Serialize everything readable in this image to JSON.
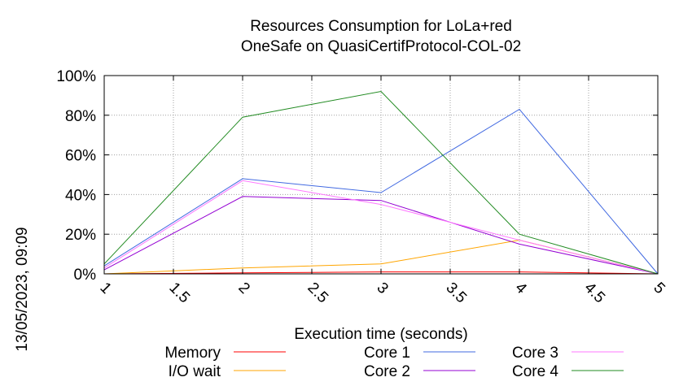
{
  "chart_data": {
    "type": "line",
    "title": [
      "Resources Consumption for LoLa+red",
      "OneSafe on QuasiCertifProtocol-COL-02"
    ],
    "xlabel": "Execution time (seconds)",
    "ylabel": "",
    "side_label": "13/05/2023, 09:09",
    "xlim": [
      1,
      5
    ],
    "ylim": [
      0,
      100
    ],
    "x_ticks": [
      "1",
      "1.5",
      "2",
      "2.5",
      "3",
      "3.5",
      "4",
      "4.5",
      "5"
    ],
    "x_tick_values": [
      1,
      1.5,
      2,
      2.5,
      3,
      3.5,
      4,
      4.5,
      5
    ],
    "y_ticks": [
      "0%",
      "20%",
      "40%",
      "60%",
      "80%",
      "100%"
    ],
    "y_tick_values": [
      0,
      20,
      40,
      60,
      80,
      100
    ],
    "grid": true,
    "legend_position": "bottom",
    "series": [
      {
        "name": "Memory",
        "color": "#ff0000",
        "x": [
          1,
          2,
          3,
          4,
          5
        ],
        "y": [
          0,
          0.5,
          1,
          1,
          0
        ]
      },
      {
        "name": "I/O wait",
        "color": "#ffa500",
        "x": [
          1,
          2,
          3,
          4,
          5
        ],
        "y": [
          0,
          3,
          5,
          17,
          0
        ]
      },
      {
        "name": "Core 1",
        "color": "#4169e1",
        "x": [
          1,
          2,
          3,
          4,
          5
        ],
        "y": [
          4,
          48,
          41,
          83,
          0
        ]
      },
      {
        "name": "Core 2",
        "color": "#9400d3",
        "x": [
          1,
          2,
          3,
          4,
          5
        ],
        "y": [
          2,
          39,
          37,
          15,
          0
        ]
      },
      {
        "name": "Core 3",
        "color": "#ff77ff",
        "x": [
          1,
          2,
          3,
          4,
          5
        ],
        "y": [
          3,
          47,
          35,
          17,
          0
        ]
      },
      {
        "name": "Core 4",
        "color": "#228b22",
        "x": [
          1,
          2,
          3,
          4,
          5
        ],
        "y": [
          5,
          79,
          92,
          20,
          0
        ]
      }
    ]
  }
}
